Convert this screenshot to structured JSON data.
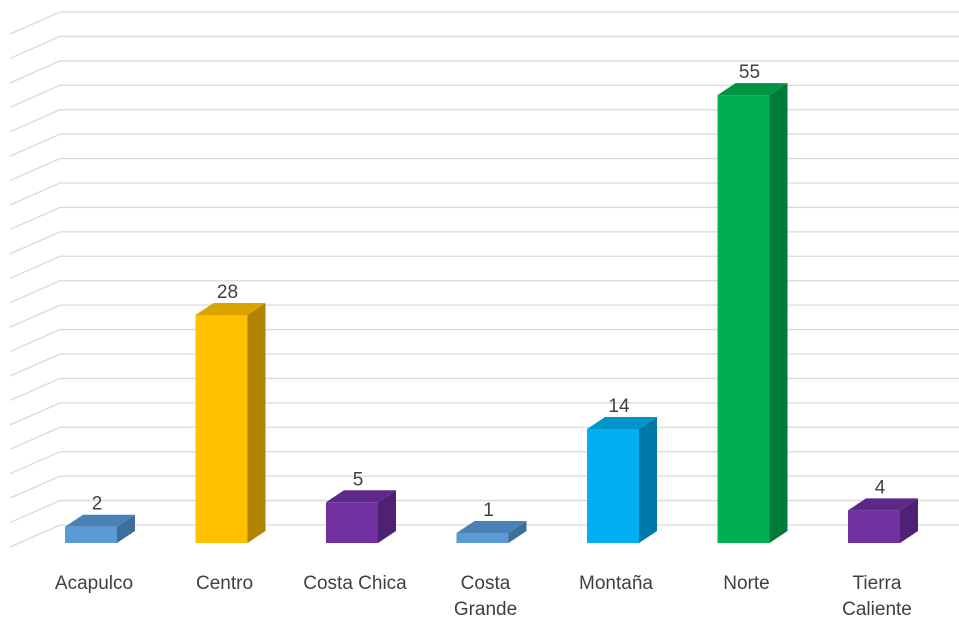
{
  "chart_data": {
    "type": "bar",
    "style": "3d-column",
    "categories": [
      "Acapulco",
      "Centro",
      "Costa Chica",
      "Costa\nGrande",
      "Montaña",
      "Norte",
      "Tierra\nCaliente"
    ],
    "values": [
      2,
      28,
      5,
      1,
      14,
      55,
      4
    ],
    "data_labels": [
      "2",
      "28",
      "5",
      "1",
      "14",
      "55",
      "4"
    ],
    "colors": [
      "#5b9bd5",
      "#ffc000",
      "#7030a0",
      "#5b9bd5",
      "#00b0f0",
      "#00b050",
      "#7030a0"
    ],
    "side_colors": [
      "#3e6f9c",
      "#b08400",
      "#4f2175",
      "#3e6f9c",
      "#0078a8",
      "#007a38",
      "#4f2175"
    ],
    "top_colors": [
      "#4a82b6",
      "#d9a300",
      "#5e2889",
      "#4a82b6",
      "#0096cc",
      "#009444",
      "#5e2889"
    ],
    "ylim": [
      0,
      63
    ],
    "grid": true,
    "legend": "none",
    "title": "",
    "xlabel": "",
    "ylabel": ""
  }
}
